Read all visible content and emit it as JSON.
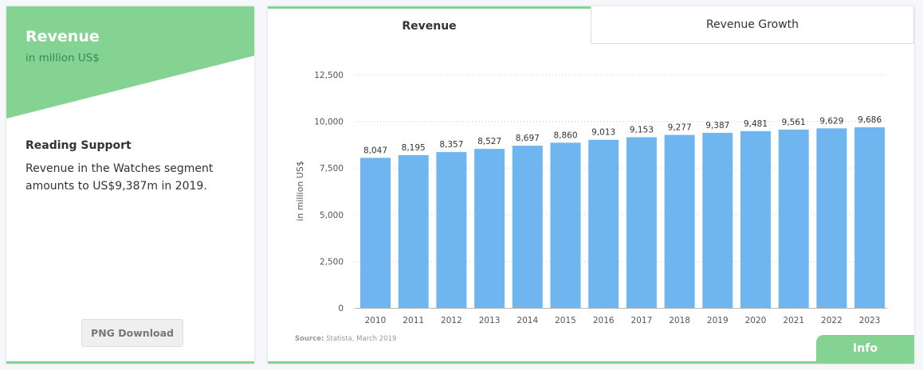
{
  "left": {
    "title": "Revenue",
    "subtitle": "in million US$",
    "reading_title": "Reading Support",
    "reading_text": "Revenue in the Watches segment amounts to US$9,387m in 2019.",
    "png_button": "PNG Download"
  },
  "tabs": [
    "Revenue",
    "Revenue Growth"
  ],
  "info_button": "Info",
  "colors": {
    "accent": "#84d393",
    "bar": "#6fb6f0"
  },
  "chart_data": {
    "type": "bar",
    "categories": [
      "2010",
      "2011",
      "2012",
      "2013",
      "2014",
      "2015",
      "2016",
      "2017",
      "2018",
      "2019",
      "2020",
      "2021",
      "2022",
      "2023"
    ],
    "values": [
      8047,
      8195,
      8357,
      8527,
      8697,
      8860,
      9013,
      9153,
      9277,
      9387,
      9481,
      9561,
      9629,
      9686
    ],
    "value_labels": [
      "8,047",
      "8,195",
      "8,357",
      "8,527",
      "8,697",
      "8,860",
      "9,013",
      "9,153",
      "9,277",
      "9,387",
      "9,481",
      "9,561",
      "9,629",
      "9,686"
    ],
    "yticks": [
      0,
      2500,
      5000,
      7500,
      10000,
      12500
    ],
    "ytick_labels": [
      "0",
      "2,500",
      "5,000",
      "7,500",
      "10,000",
      "12,500"
    ],
    "ylim": [
      0,
      12500
    ],
    "ylabel": "in million US$",
    "xlabel": "",
    "grid": true,
    "source_label": "Source:",
    "source_text": " Statista, March 2019"
  }
}
